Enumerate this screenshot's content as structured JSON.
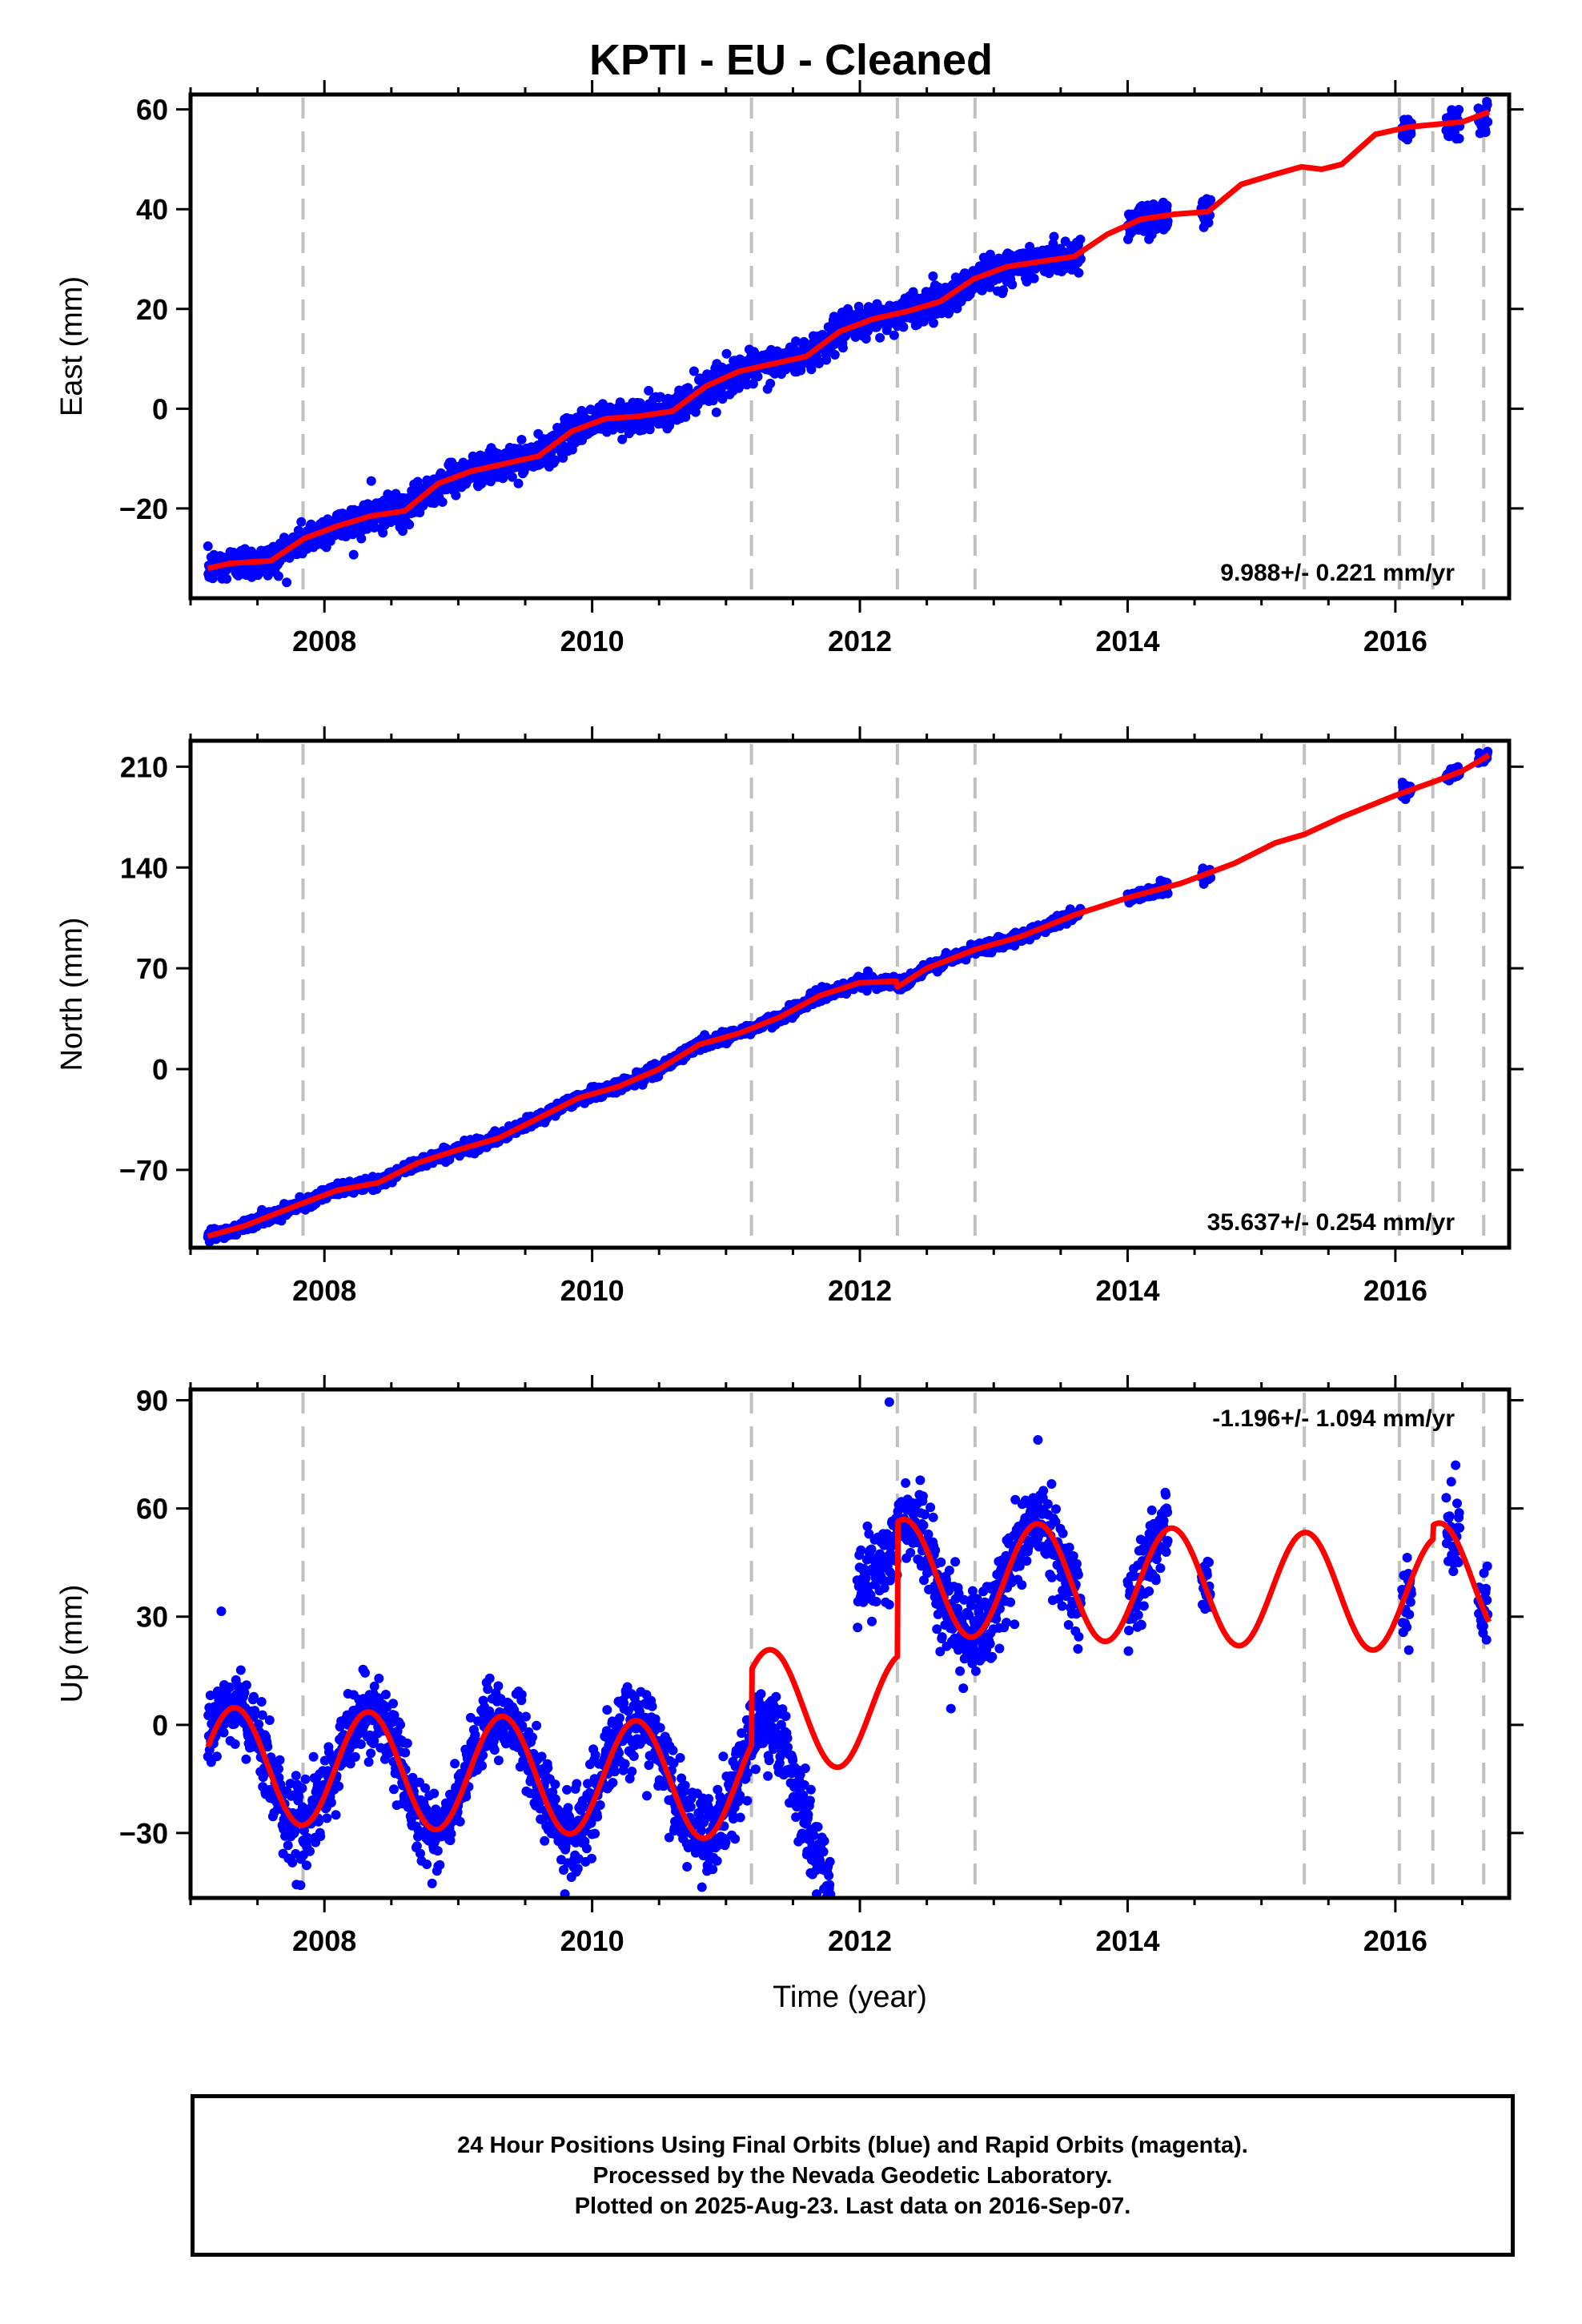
{
  "title": "KPTI  - EU - Cleaned",
  "footer": {
    "line1": "24 Hour Positions Using Final Orbits (blue) and Rapid Orbits (magenta).",
    "line2": "Processed by the Nevada Geodetic Laboratory.",
    "line3": "Plotted on 2025-Aug-23. Last data on 2016-Sep-07."
  },
  "colors": {
    "data": "#0000ff",
    "model": "#ff0000",
    "breaks": "#c0c0c0",
    "axes": "#000000"
  },
  "chart_data": [
    {
      "type": "scatter",
      "ylabel": "East (mm)",
      "xlabel": "",
      "xlim": [
        2007.0,
        2016.85
      ],
      "ylim": [
        -38,
        63
      ],
      "xticks": [
        2008,
        2010,
        2012,
        2014,
        2016
      ],
      "yticks": [
        -20,
        0,
        20,
        40,
        60
      ],
      "rate": "9.988+/- 0.221 mm/yr",
      "breaks": [
        2007.84,
        2011.19,
        2012.28,
        2012.86,
        2015.32,
        2016.03,
        2016.28,
        2016.66
      ],
      "model": {
        "x": [
          2007.13,
          2007.3,
          2007.6,
          2007.85,
          2008.1,
          2008.35,
          2008.6,
          2008.85,
          2009.1,
          2009.35,
          2009.6,
          2009.85,
          2010.1,
          2010.35,
          2010.6,
          2010.85,
          2011.1,
          2011.35,
          2011.6,
          2011.85,
          2012.1,
          2012.35,
          2012.6,
          2012.85,
          2013.1,
          2013.35,
          2013.6,
          2013.85,
          2014.1,
          2014.35,
          2014.6,
          2014.85,
          2015.1,
          2015.3,
          2015.45,
          2015.6,
          2015.85,
          2016.1,
          2016.3,
          2016.5,
          2016.7
        ],
        "y": [
          -32.0,
          -31.0,
          -30.5,
          -26.0,
          -23.5,
          -21.5,
          -20.5,
          -15.0,
          -12.5,
          -11.0,
          -9.5,
          -4.5,
          -2.0,
          -1.5,
          -0.5,
          4.5,
          7.5,
          9.0,
          10.5,
          15.5,
          18.0,
          19.5,
          21.5,
          26.0,
          28.5,
          29.5,
          30.5,
          35.0,
          38.0,
          39.0,
          39.5,
          45.0,
          47.0,
          48.5,
          48.0,
          49.0,
          55.0,
          56.5,
          57.0,
          57.5,
          59.5
        ]
      },
      "data_segments": [
        [
          2007.13,
          2013.65
        ],
        [
          2014.0,
          2014.3
        ],
        [
          2014.55,
          2014.62
        ],
        [
          2016.05,
          2016.12
        ],
        [
          2016.38,
          2016.48
        ],
        [
          2016.62,
          2016.69
        ]
      ],
      "noise": 1.6,
      "outliers": [
        [
          2008.35,
          -14.5
        ],
        [
          2013.45,
          34.5
        ]
      ]
    },
    {
      "type": "scatter",
      "ylabel": "North (mm)",
      "xlabel": "",
      "xlim": [
        2007.0,
        2016.85
      ],
      "ylim": [
        -124,
        228
      ],
      "xticks": [
        2008,
        2010,
        2012,
        2014,
        2016
      ],
      "yticks": [
        -70,
        0,
        70,
        140,
        210
      ],
      "rate": "35.637+/- 0.254 mm/yr",
      "breaks": [
        2007.84,
        2011.19,
        2012.28,
        2012.86,
        2015.32,
        2016.03,
        2016.28,
        2016.66
      ],
      "model": {
        "x": [
          2007.13,
          2007.4,
          2007.84,
          2008.1,
          2008.4,
          2008.7,
          2009.0,
          2009.3,
          2009.6,
          2009.9,
          2010.2,
          2010.5,
          2010.8,
          2011.1,
          2011.4,
          2011.7,
          2012.0,
          2012.27,
          2012.28,
          2012.5,
          2012.86,
          2013.2,
          2013.6,
          2014.0,
          2014.4,
          2014.8,
          2015.1,
          2015.32,
          2015.6,
          2016.0,
          2016.3,
          2016.5,
          2016.7
        ],
        "y": [
          -116,
          -109,
          -93,
          -84,
          -79,
          -65,
          -56,
          -48,
          -34,
          -20,
          -12,
          0,
          17,
          25,
          36,
          51,
          60,
          61,
          57,
          70,
          83,
          92,
          107,
          119,
          129,
          143,
          157,
          163,
          175,
          190,
          200,
          207,
          218
        ]
      },
      "data_segments": [
        [
          2007.13,
          2013.65
        ],
        [
          2014.0,
          2014.3
        ],
        [
          2014.55,
          2014.62
        ],
        [
          2016.05,
          2016.12
        ],
        [
          2016.38,
          2016.48
        ],
        [
          2016.62,
          2016.69
        ]
      ],
      "noise": 2.0,
      "outliers": [
        [
          2012.06,
          68
        ]
      ]
    },
    {
      "type": "scatter",
      "ylabel": "Up (mm)",
      "xlabel": "Time (year)",
      "xlim": [
        2007.0,
        2016.85
      ],
      "ylim": [
        -48,
        93
      ],
      "xticks": [
        2008,
        2010,
        2012,
        2014,
        2016
      ],
      "yticks": [
        -30,
        0,
        30,
        60,
        90
      ],
      "rate": "-1.196+/- 1.094 mm/yr",
      "breaks": [
        2007.84,
        2011.19,
        2012.28,
        2012.86,
        2015.32,
        2016.03,
        2016.28,
        2016.66
      ],
      "model_type": "seasonal",
      "seasonal": {
        "amplitude": 16,
        "period": 1.0,
        "phase_year": 2007.33,
        "pieces": [
          {
            "from": 2007.13,
            "to": 2011.19,
            "offset": -11,
            "slope": -1.2,
            "ref": 2007.13
          },
          {
            "from": 2011.19,
            "to": 2012.28,
            "offset": 5,
            "slope": -1.2,
            "ref": 2011.19
          },
          {
            "from": 2012.28,
            "to": 2016.28,
            "offset": 41,
            "slope": -1.2,
            "ref": 2012.28
          },
          {
            "from": 2016.28,
            "to": 2016.7,
            "offset": 40,
            "slope": -1.2,
            "ref": 2016.28
          }
        ],
        "ramp": [
          [
            2011.19,
            2012.27
          ],
          [
            -1,
            19
          ]
        ]
      },
      "data_segments": [
        [
          2007.13,
          2011.78
        ],
        [
          2011.98,
          2013.65
        ],
        [
          2014.0,
          2014.3
        ],
        [
          2014.55,
          2014.62
        ],
        [
          2016.05,
          2016.12
        ],
        [
          2016.38,
          2016.48
        ],
        [
          2016.62,
          2016.69
        ]
      ],
      "noise": 5.5,
      "outliers": [
        [
          2007.23,
          31.5
        ],
        [
          2012.22,
          89.5
        ],
        [
          2013.33,
          79
        ],
        [
          2012.68,
          4.5
        ],
        [
          2010.82,
          -45
        ],
        [
          2016.45,
          72
        ]
      ]
    }
  ]
}
